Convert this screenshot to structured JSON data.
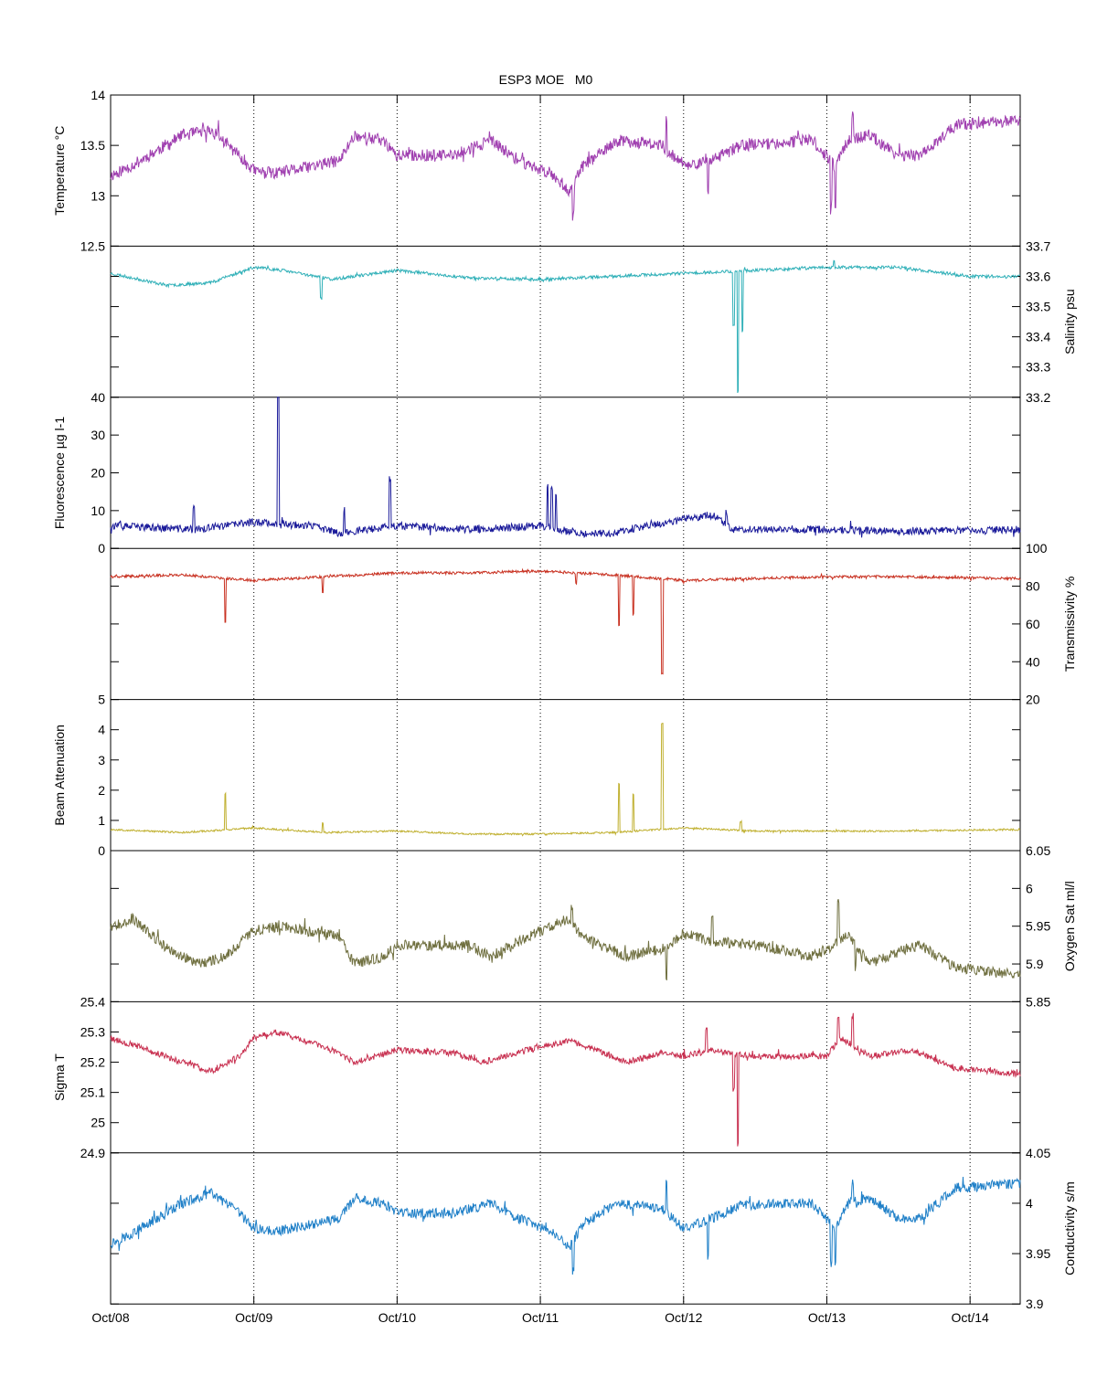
{
  "chart_data": {
    "type": "line",
    "title": "ESP3 MOE   M0",
    "x_tick_labels": [
      "Oct/08",
      "Oct/09",
      "Oct/10",
      "Oct/11",
      "Oct/12",
      "Oct/13",
      "Oct/14"
    ],
    "x_tick_days": [
      0,
      1,
      2,
      3,
      4,
      5,
      6
    ],
    "xlim_days": [
      0,
      6.35
    ],
    "x_unit_note": "",
    "grid": "vertical dotted lines at day ticks",
    "panels": [
      {
        "key": "temperature",
        "ylabel": "Temperature °C",
        "axis": "left",
        "color": "#a040b0",
        "ylim": [
          12.5,
          14
        ],
        "ticks": [
          12.5,
          13,
          13.5,
          14
        ],
        "tick_labels": [
          "12.5",
          "13",
          "13.5",
          "14"
        ],
        "noise": 0.06,
        "seed": 11,
        "profile": [
          [
            0,
            13.2
          ],
          [
            0.15,
            13.3
          ],
          [
            0.5,
            13.6
          ],
          [
            0.7,
            13.65
          ],
          [
            0.9,
            13.4
          ],
          [
            1.0,
            13.25
          ],
          [
            1.15,
            13.22
          ],
          [
            1.6,
            13.35
          ],
          [
            1.7,
            13.6
          ],
          [
            1.9,
            13.55
          ],
          [
            2.0,
            13.4
          ],
          [
            2.4,
            13.4
          ],
          [
            2.65,
            13.55
          ],
          [
            2.85,
            13.35
          ],
          [
            3.1,
            13.2
          ],
          [
            3.2,
            13.05
          ],
          [
            3.3,
            13.3
          ],
          [
            3.55,
            13.55
          ],
          [
            3.85,
            13.5
          ],
          [
            4.0,
            13.3
          ],
          [
            4.2,
            13.35
          ],
          [
            4.4,
            13.5
          ],
          [
            4.9,
            13.55
          ],
          [
            5.05,
            13.3
          ],
          [
            5.15,
            13.55
          ],
          [
            5.3,
            13.6
          ],
          [
            5.5,
            13.4
          ],
          [
            5.65,
            13.4
          ],
          [
            5.9,
            13.7
          ],
          [
            6.35,
            13.75
          ]
        ],
        "spikes": [
          [
            4.8,
            0.1
          ],
          [
            3.88,
            0.32
          ],
          [
            5.06,
            -0.42
          ],
          [
            5.03,
            -0.5
          ],
          [
            3.23,
            -0.35
          ],
          [
            4.17,
            -0.35
          ],
          [
            5.18,
            0.22
          ],
          [
            0.75,
            0.12
          ]
        ]
      },
      {
        "key": "salinity",
        "ylabel": "Salinity psu",
        "axis": "right",
        "color": "#30b0b8",
        "ylim": [
          33.2,
          33.7
        ],
        "ticks": [
          33.2,
          33.3,
          33.4,
          33.5,
          33.6,
          33.7
        ],
        "tick_labels": [
          "33.2",
          "33.3",
          "33.4",
          "33.5",
          "33.6",
          "33.7"
        ],
        "noise": 0.005,
        "seed": 23,
        "profile": [
          [
            0,
            33.61
          ],
          [
            0.4,
            33.57
          ],
          [
            0.7,
            33.58
          ],
          [
            1.0,
            33.63
          ],
          [
            1.2,
            33.62
          ],
          [
            1.55,
            33.59
          ],
          [
            2.0,
            33.62
          ],
          [
            2.5,
            33.595
          ],
          [
            3.0,
            33.59
          ],
          [
            3.5,
            33.6
          ],
          [
            4.0,
            33.61
          ],
          [
            4.5,
            33.62
          ],
          [
            5.0,
            33.63
          ],
          [
            5.5,
            33.63
          ],
          [
            6.0,
            33.6
          ],
          [
            6.35,
            33.6
          ]
        ],
        "spikes": [
          [
            4.35,
            -0.18
          ],
          [
            4.38,
            -0.4
          ],
          [
            1.47,
            -0.07
          ],
          [
            4.41,
            -0.2
          ],
          [
            5.05,
            0.025
          ]
        ]
      },
      {
        "key": "fluorescence",
        "ylabel": "Fluorescence µg l-1",
        "axis": "left",
        "color": "#1a1a9a",
        "ylim": [
          0,
          40
        ],
        "ticks": [
          0,
          10,
          20,
          30,
          40
        ],
        "tick_labels": [
          "0",
          "10",
          "20",
          "30",
          "40"
        ],
        "noise": 1.0,
        "seed": 37,
        "profile": [
          [
            0,
            6
          ],
          [
            0.6,
            5
          ],
          [
            1.0,
            7
          ],
          [
            1.4,
            6
          ],
          [
            1.6,
            4
          ],
          [
            2.0,
            6
          ],
          [
            2.5,
            5
          ],
          [
            3.0,
            6
          ],
          [
            3.3,
            4
          ],
          [
            3.5,
            4
          ],
          [
            3.9,
            7
          ],
          [
            4.2,
            9
          ],
          [
            4.35,
            5
          ],
          [
            5.0,
            5
          ],
          [
            5.5,
            4.5
          ],
          [
            6.35,
            5
          ]
        ],
        "spikes": [
          [
            1.17,
            31
          ],
          [
            1.17,
            15
          ],
          [
            1.95,
            13
          ],
          [
            3.05,
            11
          ],
          [
            3.08,
            10
          ],
          [
            3.11,
            9
          ],
          [
            0.58,
            6
          ],
          [
            1.63,
            6
          ],
          [
            4.3,
            3
          ]
        ]
      },
      {
        "key": "transmissivity",
        "ylabel": "Transmissivity %",
        "axis": "right",
        "color": "#c83020",
        "ylim": [
          20,
          100
        ],
        "ticks": [
          20,
          40,
          60,
          80,
          100
        ],
        "tick_labels": [
          "20",
          "40",
          "60",
          "80",
          "100"
        ],
        "noise": 0.7,
        "seed": 41,
        "profile": [
          [
            0,
            85
          ],
          [
            0.5,
            86
          ],
          [
            1.0,
            83
          ],
          [
            1.5,
            85
          ],
          [
            2.0,
            87
          ],
          [
            2.5,
            87
          ],
          [
            3.0,
            88
          ],
          [
            3.5,
            86
          ],
          [
            4.0,
            83
          ],
          [
            4.5,
            84
          ],
          [
            5.0,
            85
          ],
          [
            5.5,
            85
          ],
          [
            6.35,
            84
          ]
        ],
        "spikes": [
          [
            0.8,
            -23
          ],
          [
            3.55,
            -27
          ],
          [
            3.65,
            -20
          ],
          [
            3.85,
            -50
          ],
          [
            1.48,
            -8
          ],
          [
            3.25,
            -6
          ]
        ]
      },
      {
        "key": "beam_attenuation",
        "ylabel": "Beam Attenuation",
        "axis": "left",
        "color": "#c0b030",
        "ylim": [
          0,
          5
        ],
        "ticks": [
          0,
          1,
          2,
          3,
          4,
          5
        ],
        "tick_labels": [
          "0",
          "1",
          "2",
          "3",
          "4",
          "5"
        ],
        "noise": 0.03,
        "seed": 53,
        "profile": [
          [
            0,
            0.7
          ],
          [
            0.5,
            0.6
          ],
          [
            1.0,
            0.75
          ],
          [
            1.5,
            0.6
          ],
          [
            2.0,
            0.65
          ],
          [
            2.5,
            0.55
          ],
          [
            3.0,
            0.55
          ],
          [
            3.5,
            0.6
          ],
          [
            4.0,
            0.75
          ],
          [
            4.5,
            0.65
          ],
          [
            5.0,
            0.65
          ],
          [
            5.5,
            0.65
          ],
          [
            6.35,
            0.7
          ]
        ],
        "spikes": [
          [
            0.8,
            1.2
          ],
          [
            3.55,
            1.6
          ],
          [
            3.65,
            1.2
          ],
          [
            3.85,
            3.5
          ],
          [
            1.48,
            0.3
          ],
          [
            4.4,
            0.3
          ]
        ]
      },
      {
        "key": "oxygen_sat",
        "ylabel": "Oxygen Sat ml/l",
        "axis": "right",
        "color": "#707040",
        "ylim": [
          5.85,
          6.05
        ],
        "ticks": [
          5.85,
          5.9,
          5.95,
          6.0,
          6.05
        ],
        "tick_labels": [
          "5.85",
          "5.9",
          "5.95",
          "6",
          "6.05"
        ],
        "noise": 0.007,
        "seed": 67,
        "profile": [
          [
            0,
            5.95
          ],
          [
            0.15,
            5.96
          ],
          [
            0.4,
            5.92
          ],
          [
            0.6,
            5.9
          ],
          [
            0.8,
            5.91
          ],
          [
            1.0,
            5.945
          ],
          [
            1.2,
            5.95
          ],
          [
            1.6,
            5.935
          ],
          [
            1.7,
            5.9
          ],
          [
            1.9,
            5.91
          ],
          [
            2.0,
            5.925
          ],
          [
            2.5,
            5.925
          ],
          [
            2.65,
            5.91
          ],
          [
            2.9,
            5.935
          ],
          [
            3.2,
            5.96
          ],
          [
            3.3,
            5.935
          ],
          [
            3.6,
            5.91
          ],
          [
            3.85,
            5.92
          ],
          [
            4.0,
            5.94
          ],
          [
            4.2,
            5.93
          ],
          [
            4.5,
            5.925
          ],
          [
            4.9,
            5.91
          ],
          [
            5.05,
            5.925
          ],
          [
            5.15,
            5.94
          ],
          [
            5.3,
            5.9
          ],
          [
            5.55,
            5.92
          ],
          [
            5.65,
            5.925
          ],
          [
            5.9,
            5.895
          ],
          [
            6.35,
            5.885
          ]
        ],
        "spikes": [
          [
            4.2,
            0.03
          ],
          [
            3.88,
            -0.04
          ],
          [
            5.08,
            0.05
          ],
          [
            5.2,
            -0.035
          ],
          [
            3.22,
            0.02
          ]
        ]
      },
      {
        "key": "sigma_t",
        "ylabel": "Sigma T",
        "axis": "left",
        "color": "#c83050",
        "ylim": [
          24.9,
          25.4
        ],
        "ticks": [
          24.9,
          25.0,
          25.1,
          25.2,
          25.3,
          25.4
        ],
        "tick_labels": [
          "24.9",
          "25",
          "25.1",
          "25.2",
          "25.3",
          "25.4"
        ],
        "noise": 0.01,
        "seed": 79,
        "profile": [
          [
            0,
            25.28
          ],
          [
            0.2,
            25.25
          ],
          [
            0.5,
            25.2
          ],
          [
            0.7,
            25.17
          ],
          [
            0.9,
            25.22
          ],
          [
            1.0,
            25.28
          ],
          [
            1.15,
            25.3
          ],
          [
            1.5,
            25.25
          ],
          [
            1.7,
            25.2
          ],
          [
            2.0,
            25.24
          ],
          [
            2.4,
            25.23
          ],
          [
            2.6,
            25.2
          ],
          [
            2.9,
            25.24
          ],
          [
            3.2,
            25.27
          ],
          [
            3.4,
            25.24
          ],
          [
            3.6,
            25.2
          ],
          [
            3.85,
            25.23
          ],
          [
            4.0,
            25.22
          ],
          [
            4.2,
            25.24
          ],
          [
            4.5,
            25.22
          ],
          [
            5.0,
            25.22
          ],
          [
            5.1,
            25.28
          ],
          [
            5.3,
            25.22
          ],
          [
            5.6,
            25.24
          ],
          [
            5.9,
            25.18
          ],
          [
            6.35,
            25.16
          ]
        ],
        "spikes": [
          [
            4.35,
            -0.12
          ],
          [
            4.38,
            -0.3
          ],
          [
            5.08,
            0.08
          ],
          [
            5.18,
            0.1
          ],
          [
            4.16,
            0.08
          ]
        ]
      },
      {
        "key": "conductivity",
        "ylabel": "Conductivity s/m",
        "axis": "right",
        "color": "#2080c8",
        "ylim": [
          3.9,
          4.05
        ],
        "ticks": [
          3.9,
          3.95,
          4.0,
          4.05
        ],
        "tick_labels": [
          "3.9",
          "3.95",
          "4",
          "4.05"
        ],
        "noise": 0.005,
        "seed": 97,
        "profile": [
          [
            0,
            3.96
          ],
          [
            0.15,
            3.97
          ],
          [
            0.5,
            4.0
          ],
          [
            0.7,
            4.01
          ],
          [
            0.9,
            3.99
          ],
          [
            1.0,
            3.975
          ],
          [
            1.15,
            3.972
          ],
          [
            1.6,
            3.985
          ],
          [
            1.7,
            4.005
          ],
          [
            1.9,
            4.0
          ],
          [
            2.0,
            3.99
          ],
          [
            2.4,
            3.99
          ],
          [
            2.65,
            4.0
          ],
          [
            2.85,
            3.985
          ],
          [
            3.1,
            3.97
          ],
          [
            3.2,
            3.955
          ],
          [
            3.3,
            3.98
          ],
          [
            3.55,
            4.0
          ],
          [
            3.85,
            3.995
          ],
          [
            4.0,
            3.975
          ],
          [
            4.2,
            3.985
          ],
          [
            4.4,
            3.998
          ],
          [
            4.9,
            4.0
          ],
          [
            5.05,
            3.975
          ],
          [
            5.15,
            4.0
          ],
          [
            5.3,
            4.005
          ],
          [
            5.5,
            3.985
          ],
          [
            5.65,
            3.985
          ],
          [
            5.9,
            4.015
          ],
          [
            6.35,
            4.02
          ]
        ],
        "spikes": [
          [
            3.88,
            0.03
          ],
          [
            5.06,
            -0.04
          ],
          [
            5.03,
            -0.04
          ],
          [
            3.23,
            -0.03
          ],
          [
            4.17,
            -0.04
          ],
          [
            5.18,
            0.02
          ]
        ]
      }
    ]
  }
}
